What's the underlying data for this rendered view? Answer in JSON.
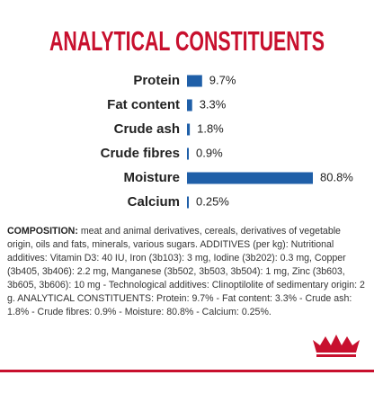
{
  "chart_data": {
    "type": "bar",
    "title": "ANALYTICAL CONSTITUENTS",
    "categories": [
      "Protein",
      "Fat content",
      "Crude ash",
      "Crude fibres",
      "Moisture",
      "Calcium"
    ],
    "values": [
      9.7,
      3.3,
      1.8,
      0.9,
      80.8,
      0.25
    ],
    "value_labels": [
      "9.7%",
      "3.3%",
      "1.8%",
      "0.9%",
      "80.8%",
      "0.25%"
    ],
    "color": "#1f5fa8",
    "orientation": "horizontal"
  },
  "composition": {
    "label": "COMPOSITION:",
    "text": "meat and animal derivatives, cereals, derivatives of vegetable origin, oils and fats, minerals, various sugars. ADDITIVES (per kg): Nutritional additives: Vitamin D3: 40 IU, Iron (3b103): 3 mg, Iodine (3b202): 0.3 mg, Copper (3b405, 3b406): 2.2 mg, Manganese (3b502, 3b503, 3b504): 1 mg, Zinc (3b603, 3b605, 3b606): 10 mg - Technological additives: Clinoptilolite of sedimentary origin: 2 g. ANALYTICAL CONSTITUENTS: Protein: 9.7% - Fat content: 3.3% - Crude ash: 1.8% - Crude fibres: 0.9% - Moisture: 80.8% - Calcium: 0.25%."
  }
}
